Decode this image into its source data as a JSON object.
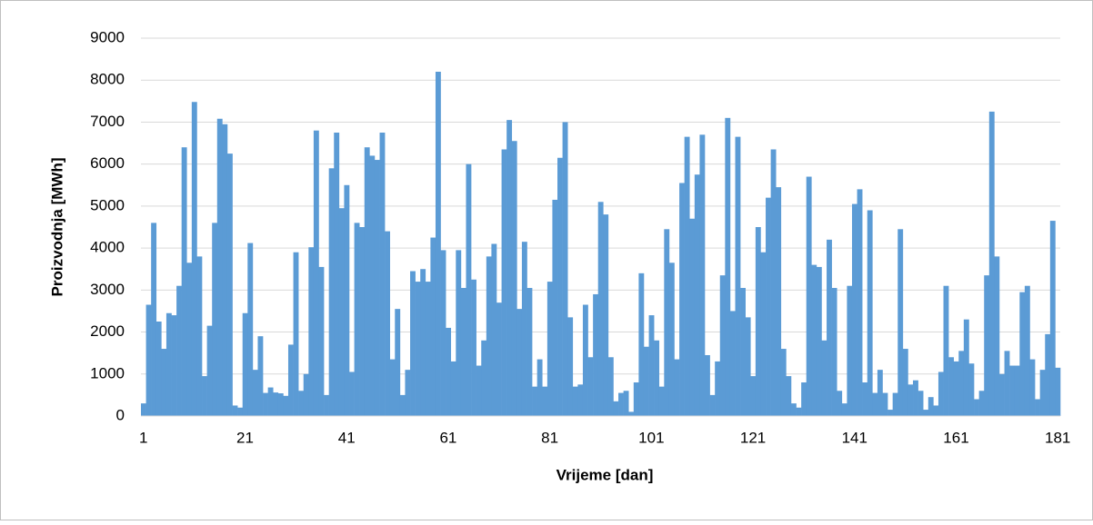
{
  "chart_data": {
    "type": "bar",
    "x_label": "Vrijeme [dan]",
    "y_label": "Proizvodnja [MWh]",
    "color": "#5b9bd5",
    "grid": true,
    "ylim": [
      0,
      9000
    ],
    "yticks": [
      0,
      1000,
      2000,
      3000,
      4000,
      5000,
      6000,
      7000,
      8000,
      9000
    ],
    "categories": [
      1,
      null,
      null,
      null,
      null,
      null,
      null,
      null,
      null,
      null,
      null,
      null,
      null,
      null,
      null,
      null,
      null,
      null,
      null,
      null,
      21,
      null,
      null,
      null,
      null,
      null,
      null,
      null,
      null,
      null,
      null,
      null,
      null,
      null,
      null,
      null,
      null,
      null,
      null,
      null,
      41,
      null,
      null,
      null,
      null,
      null,
      null,
      null,
      null,
      null,
      null,
      null,
      null,
      null,
      null,
      null,
      null,
      null,
      null,
      null,
      61,
      null,
      null,
      null,
      null,
      null,
      null,
      null,
      null,
      null,
      null,
      null,
      null,
      null,
      null,
      null,
      null,
      null,
      null,
      null,
      81,
      null,
      null,
      null,
      null,
      null,
      null,
      null,
      null,
      null,
      null,
      null,
      null,
      null,
      null,
      null,
      null,
      null,
      null,
      null,
      101,
      null,
      null,
      null,
      null,
      null,
      null,
      null,
      null,
      null,
      null,
      null,
      null,
      null,
      null,
      null,
      null,
      null,
      null,
      null,
      121,
      null,
      null,
      null,
      null,
      null,
      null,
      null,
      null,
      null,
      null,
      null,
      null,
      null,
      null,
      null,
      null,
      null,
      null,
      null,
      141,
      null,
      null,
      null,
      null,
      null,
      null,
      null,
      null,
      null,
      null,
      null,
      null,
      null,
      null,
      null,
      null,
      null,
      null,
      null,
      161,
      null,
      null,
      null,
      null,
      null,
      null,
      null,
      null,
      null,
      null,
      null,
      null,
      null,
      null,
      null,
      null,
      null,
      null,
      null,
      181
    ],
    "values": [
      300,
      2650,
      4600,
      2250,
      1600,
      2450,
      2400,
      3100,
      6400,
      3650,
      7480,
      3800,
      950,
      2150,
      4600,
      7080,
      6950,
      6250,
      250,
      200,
      2450,
      4120,
      1100,
      1900,
      550,
      680,
      560,
      540,
      480,
      1700,
      3900,
      600,
      1000,
      4020,
      6800,
      3550,
      500,
      5900,
      6750,
      4950,
      5500,
      1050,
      4600,
      4500,
      6400,
      6200,
      6100,
      6750,
      4400,
      1350,
      2550,
      500,
      1100,
      3450,
      3200,
      3500,
      3200,
      4250,
      8200,
      3950,
      2100,
      1300,
      3950,
      3050,
      6000,
      3250,
      1200,
      1800,
      3800,
      4100,
      2700,
      6350,
      7050,
      6550,
      2550,
      4150,
      3050,
      700,
      1350,
      700,
      3200,
      5150,
      6150,
      7000,
      2350,
      700,
      750,
      2650,
      1400,
      2900,
      5100,
      4800,
      1400,
      350,
      550,
      600,
      100,
      800,
      3400,
      1650,
      2400,
      1800,
      700,
      4450,
      3650,
      1350,
      5550,
      6650,
      4700,
      5750,
      6700,
      1450,
      500,
      1300,
      3350,
      7100,
      2500,
      6650,
      3050,
      2350,
      950,
      4500,
      3900,
      5200,
      6350,
      5450,
      1600,
      950,
      300,
      200,
      800,
      5700,
      3600,
      3550,
      1800,
      4200,
      3050,
      600,
      300,
      3100,
      5050,
      5400,
      800,
      4900,
      550,
      1100,
      550,
      150,
      550,
      4450,
      1600,
      750,
      850,
      600,
      150,
      450,
      250,
      1050,
      3100,
      1400,
      1300,
      1550,
      2300,
      1250,
      400,
      600,
      3350,
      7250,
      3800,
      1000,
      1550,
      1200,
      1200,
      2950,
      3100,
      1350,
      400,
      1100,
      1950,
      4650,
      1150
    ]
  }
}
